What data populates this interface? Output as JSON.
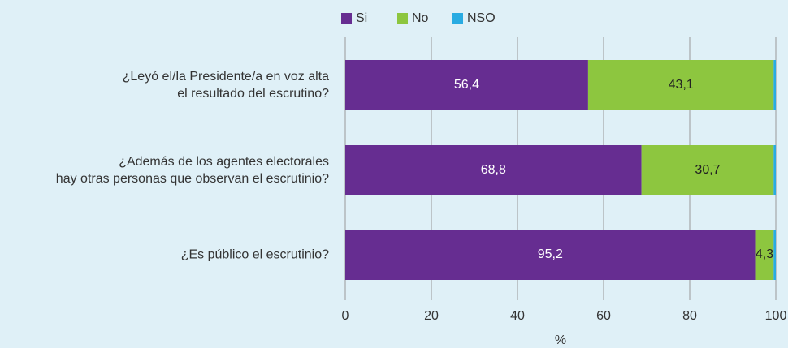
{
  "chart_data": {
    "type": "stacked_bar_horizontal",
    "categories": [
      "¿Leyó el/la Presidente/a en voz alta\nel resultado del escrutino?",
      "¿Además de los agentes electorales\nhay otras personas que observan el escrutinio?",
      "¿Es público el escrutinio?"
    ],
    "series": [
      {
        "name": "Si",
        "color": "#662d91",
        "label_color": "#ffffff",
        "values": [
          56.4,
          68.8,
          95.2
        ],
        "value_labels": [
          "56,4",
          "68,8",
          "95,2"
        ]
      },
      {
        "name": "No",
        "color": "#8dc63f",
        "label_color": "#222222",
        "values": [
          43.1,
          30.7,
          4.3
        ],
        "value_labels": [
          "43,1",
          "30,7",
          "4,3"
        ]
      },
      {
        "name": "NSO",
        "color": "#29abe2",
        "values": [
          0.5,
          0.5,
          0.5
        ]
      }
    ],
    "x_label": "%",
    "xlim": [
      0,
      100
    ],
    "xticks": [
      0,
      20,
      40,
      60,
      80,
      100
    ],
    "grid": true,
    "legend": "top"
  }
}
